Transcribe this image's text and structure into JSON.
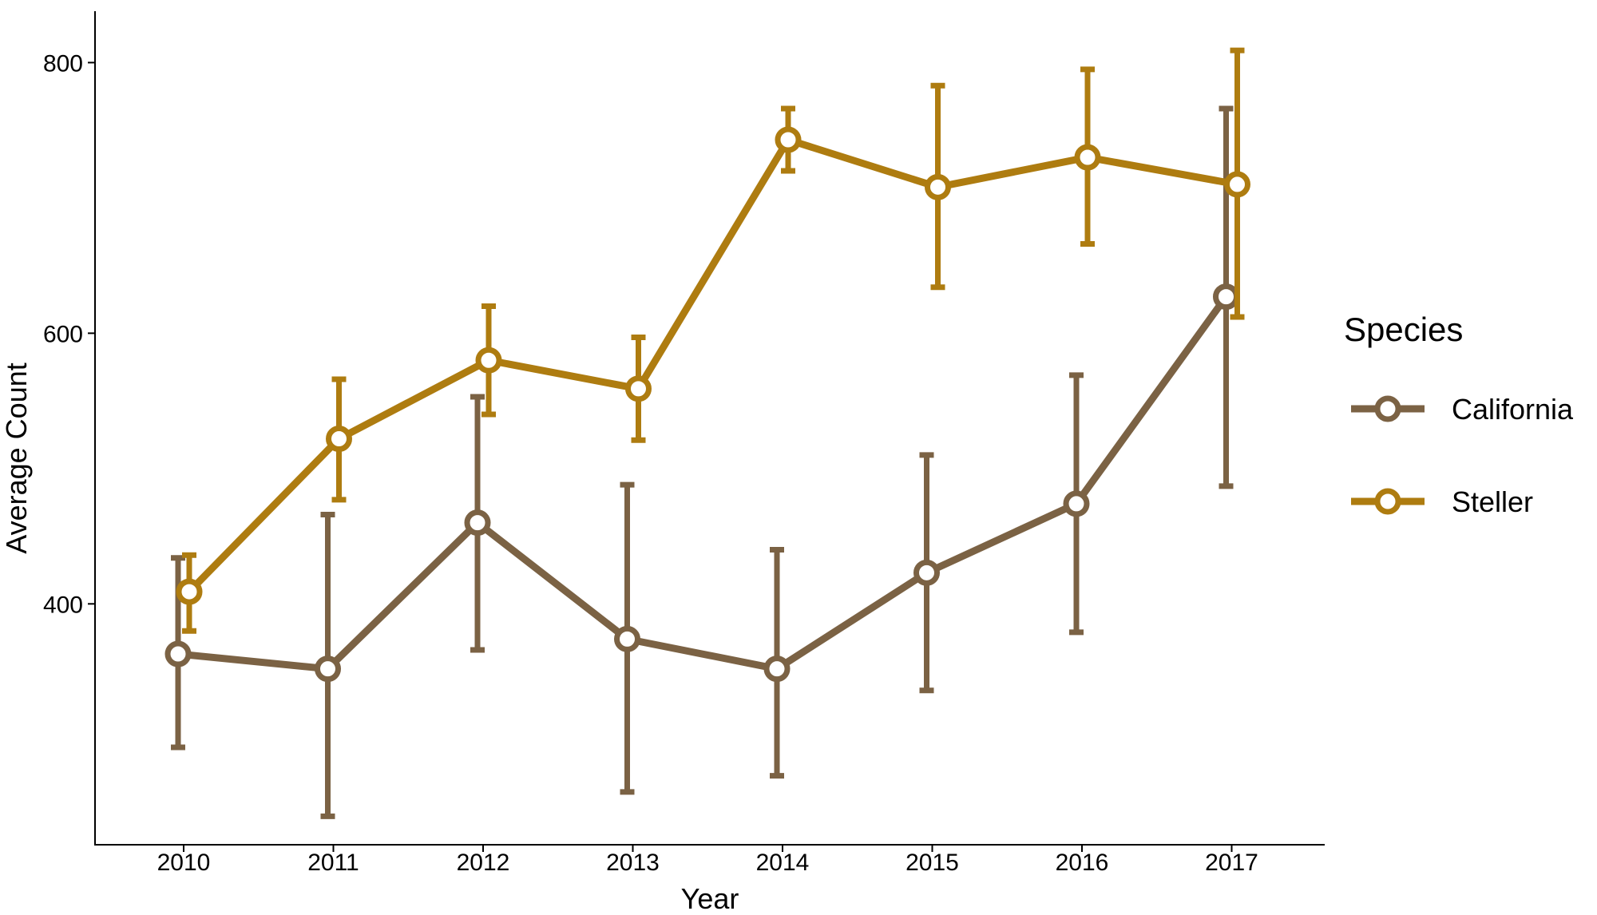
{
  "chart_data": {
    "type": "line",
    "x": [
      "2010",
      "2011",
      "2012",
      "2013",
      "2014",
      "2015",
      "2016",
      "2017"
    ],
    "xlabel": "Year",
    "ylabel": "Average Count",
    "ylim": [
      222,
      838
    ],
    "yticks": [
      400,
      600,
      800
    ],
    "grid": false,
    "legend": {
      "title": "Species",
      "position": "right"
    },
    "series": [
      {
        "name": "California",
        "color": "#7b6244",
        "values": [
          363,
          352,
          460,
          374,
          352,
          423,
          474,
          627
        ],
        "lower": [
          294,
          243,
          366,
          261,
          273,
          336,
          379,
          487
        ],
        "upper": [
          434,
          466,
          553,
          488,
          440,
          510,
          569,
          766
        ]
      },
      {
        "name": "Steller",
        "color": "#ae7c10",
        "values": [
          409,
          522,
          580,
          559,
          743,
          708,
          730,
          710
        ],
        "lower": [
          380,
          477,
          540,
          521,
          720,
          634,
          666,
          612
        ],
        "upper": [
          436,
          566,
          620,
          597,
          766,
          783,
          795,
          809
        ]
      }
    ]
  }
}
